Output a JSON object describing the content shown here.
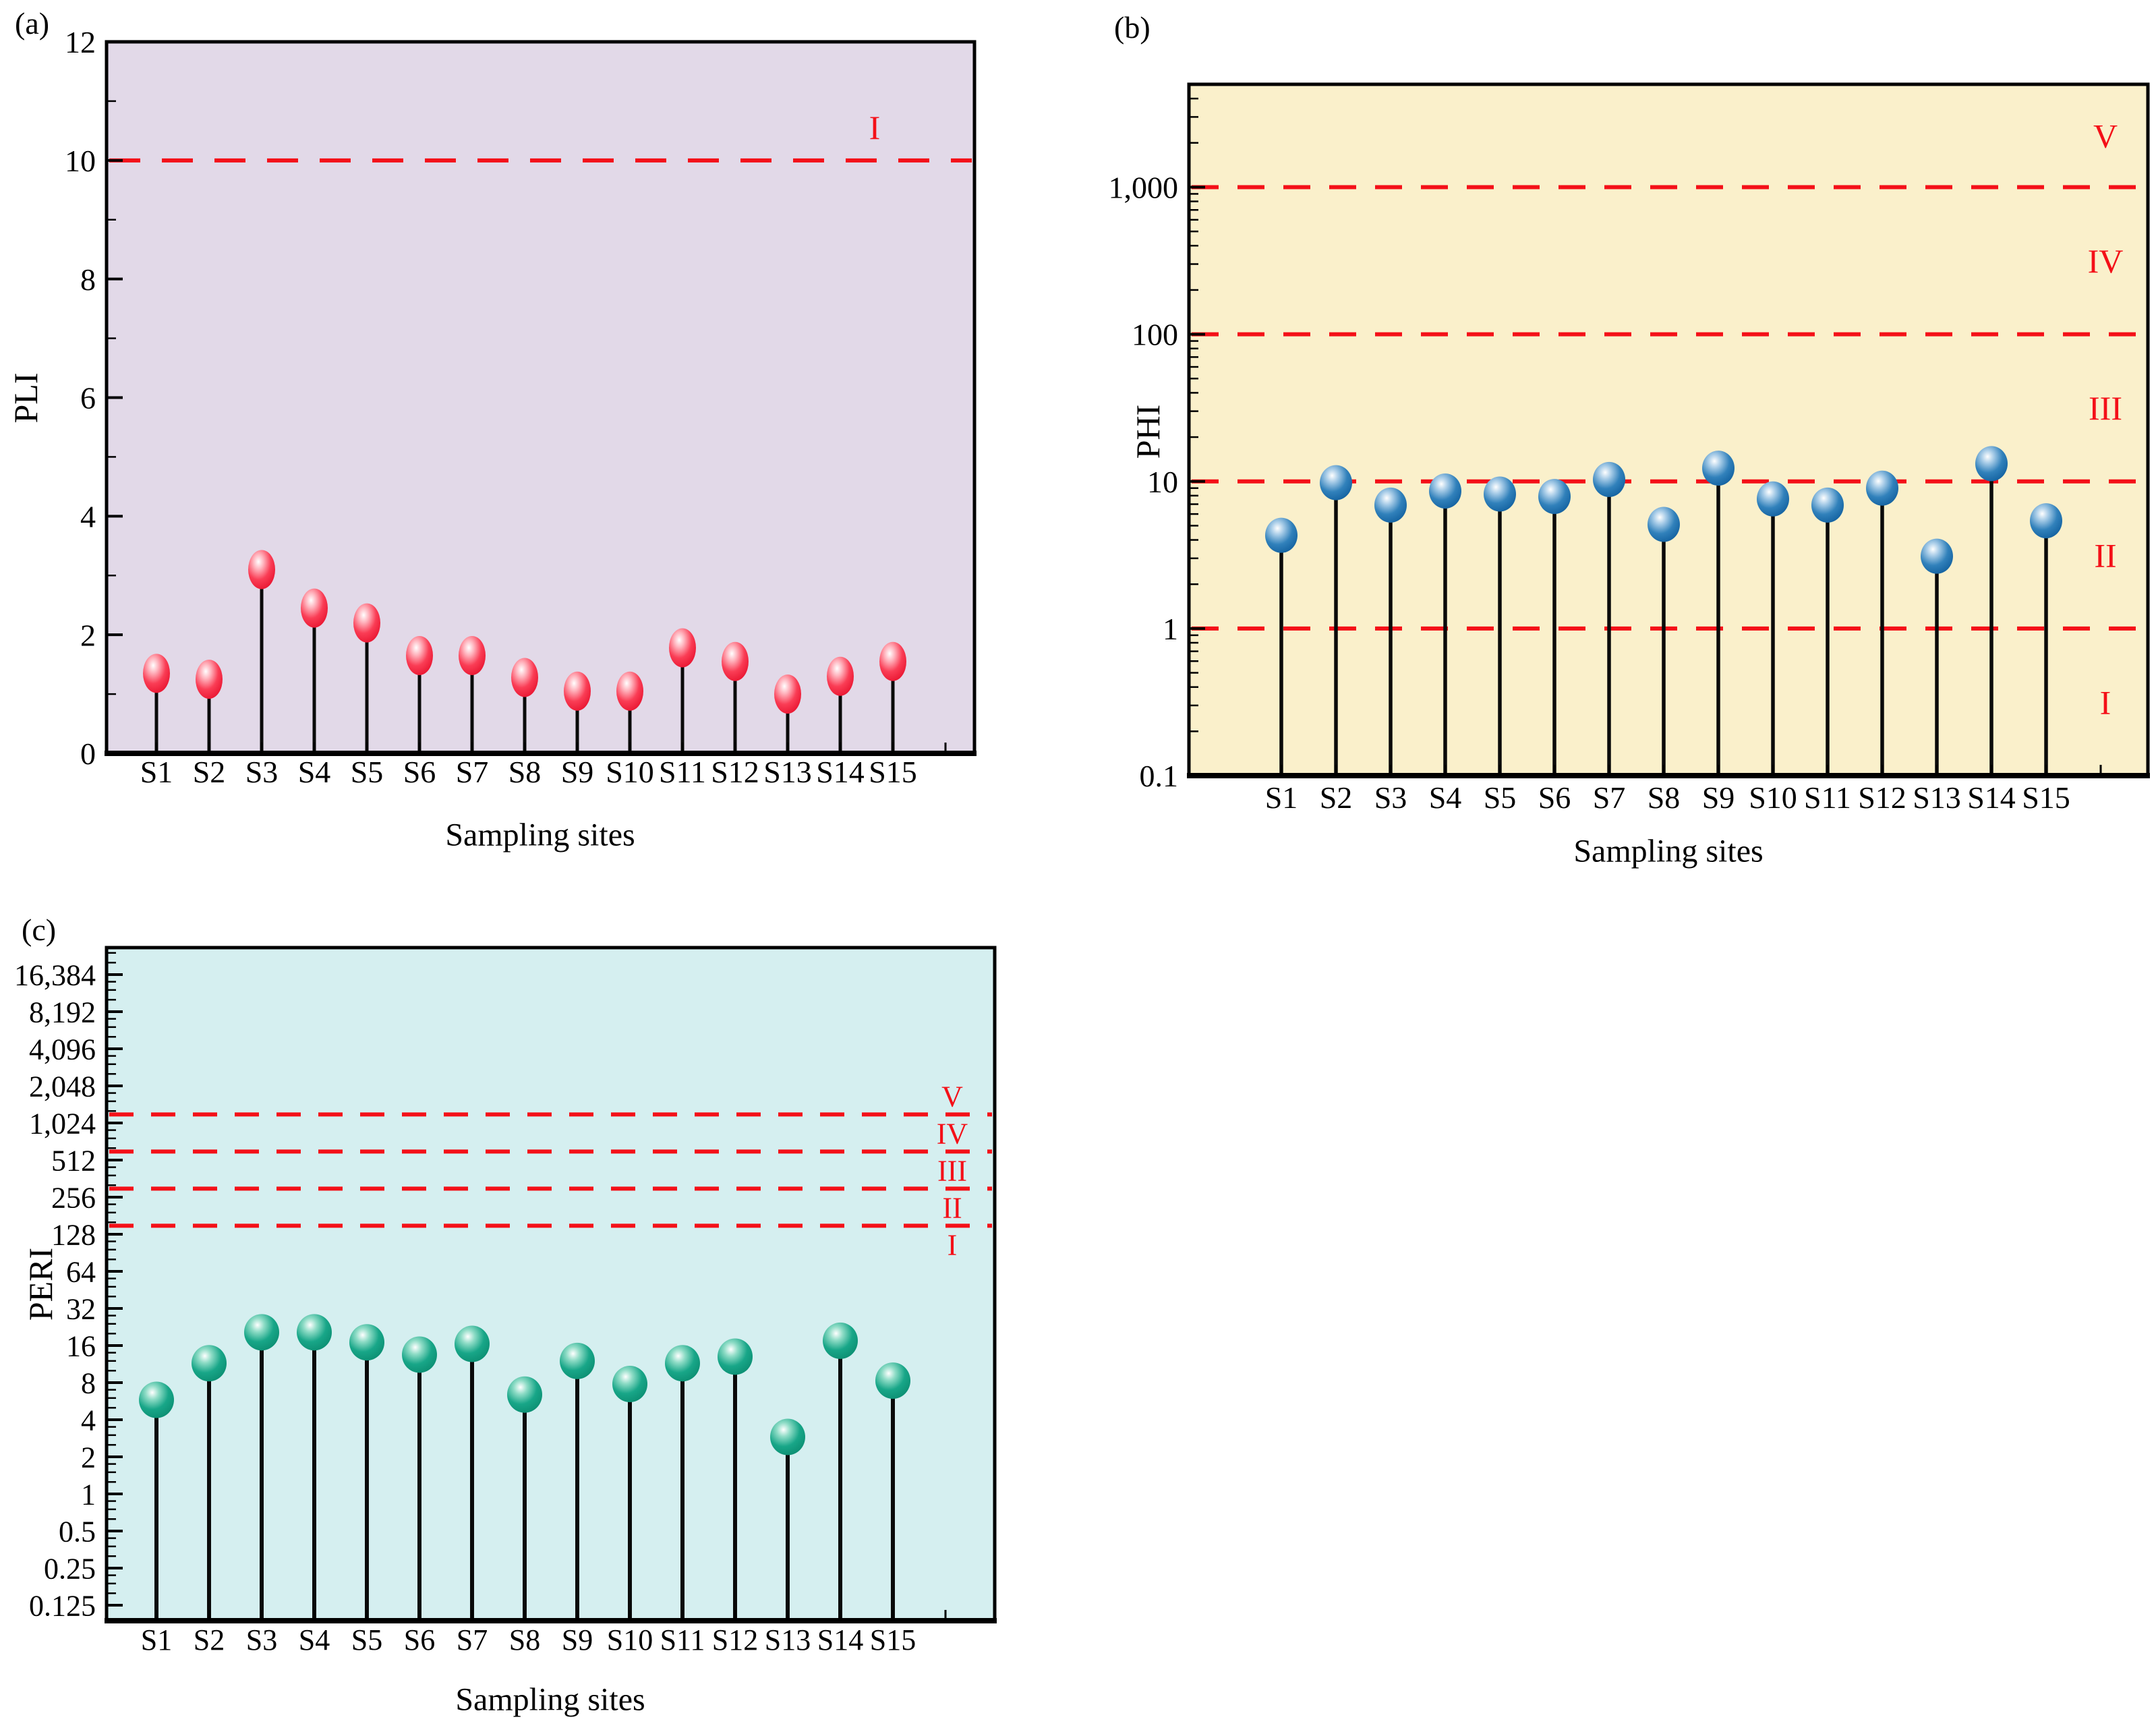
{
  "page": {
    "background": "#ffffff"
  },
  "chart_data": [
    {
      "id": "a",
      "type": "lollipop",
      "panel_label": "(a)",
      "xlabel": "Sampling sites",
      "ylabel": "PLI",
      "categories": [
        "S1",
        "S2",
        "S3",
        "S4",
        "S5",
        "S6",
        "S7",
        "S8",
        "S9",
        "S10",
        "S11",
        "S12",
        "S13",
        "S14",
        "S15"
      ],
      "values": [
        1.35,
        1.25,
        3.1,
        2.45,
        2.2,
        1.65,
        1.65,
        1.28,
        1.05,
        1.05,
        1.78,
        1.55,
        1.0,
        1.3,
        1.55
      ],
      "axis": {
        "scale": "linear",
        "min": 0,
        "max": 12,
        "major_ticks": [
          0,
          2,
          4,
          6,
          8,
          10,
          12
        ],
        "tick_labels": [
          "0",
          "2",
          "4",
          "6",
          "8",
          "10",
          "12"
        ],
        "minor_ticks": [
          1,
          3,
          5,
          7,
          9,
          11
        ],
        "grid": "off"
      },
      "threshold_lines": [
        {
          "value": 10,
          "label": "I"
        }
      ],
      "zone_labels": [],
      "colors": {
        "background": "#e2d9e8",
        "marker": "#f63b52",
        "stem": "#0a0a0a",
        "threshold": "#f41018"
      }
    },
    {
      "id": "b",
      "type": "lollipop",
      "panel_label": "(b)",
      "xlabel": "Sampling sites",
      "ylabel": "PHI",
      "categories": [
        "S1",
        "S2",
        "S3",
        "S4",
        "S5",
        "S6",
        "S7",
        "S8",
        "S9",
        "S10",
        "S11",
        "S12",
        "S13",
        "S14",
        "S15"
      ],
      "values": [
        4.3,
        9.8,
        6.9,
        8.6,
        8.2,
        7.9,
        10.3,
        5.1,
        12.3,
        7.6,
        6.9,
        9.0,
        3.1,
        13.2,
        5.4
      ],
      "axis": {
        "scale": "log10",
        "min": 0.1,
        "max": 5000,
        "major_ticks": [
          0.1,
          1,
          10,
          100,
          1000
        ],
        "tick_labels": [
          "0.1",
          "1",
          "10",
          "100",
          "1,000"
        ],
        "grid": "off"
      },
      "threshold_lines": [
        {
          "value": 1,
          "label": ""
        },
        {
          "value": 10,
          "label": ""
        },
        {
          "value": 100,
          "label": ""
        },
        {
          "value": 1000,
          "label": ""
        }
      ],
      "zone_labels": [
        {
          "label": "V",
          "between": [
            1000,
            5000
          ]
        },
        {
          "label": "IV",
          "between": [
            100,
            1000
          ]
        },
        {
          "label": "III",
          "between": [
            10,
            100
          ]
        },
        {
          "label": "II",
          "between": [
            1,
            10
          ]
        },
        {
          "label": "I",
          "between": [
            0.1,
            1
          ]
        }
      ],
      "colors": {
        "background": "#faf0cb",
        "marker": "#2272b4",
        "stem": "#0a0a0a",
        "threshold": "#f41018"
      }
    },
    {
      "id": "c",
      "type": "lollipop",
      "panel_label": "(c)",
      "xlabel": "Sampling sites",
      "ylabel": "PERI",
      "categories": [
        "S1",
        "S2",
        "S3",
        "S4",
        "S5",
        "S6",
        "S7",
        "S8",
        "S9",
        "S10",
        "S11",
        "S12",
        "S13",
        "S14",
        "S15"
      ],
      "values": [
        5.8,
        11.5,
        20.5,
        20.5,
        17.0,
        13.5,
        16.5,
        6.4,
        12.0,
        7.8,
        11.5,
        13.0,
        2.9,
        17.5,
        8.3
      ],
      "axis": {
        "scale": "log2",
        "min": 0.125,
        "max": 16384,
        "major_ticks": [
          0.125,
          0.25,
          0.5,
          1,
          2,
          4,
          8,
          16,
          32,
          64,
          128,
          256,
          512,
          1024,
          2048,
          4096,
          8192,
          16384
        ],
        "tick_labels": [
          "0.125",
          "0.25",
          "0.5",
          "1",
          "2",
          "4",
          "8",
          "16",
          "32",
          "64",
          "128",
          "256",
          "512",
          "1,024",
          "2,048",
          "4,096",
          "8,192",
          "16,384"
        ],
        "grid": "off"
      },
      "threshold_lines": [
        {
          "value": 150,
          "label": ""
        },
        {
          "value": 300,
          "label": ""
        },
        {
          "value": 600,
          "label": ""
        },
        {
          "value": 1200,
          "label": ""
        }
      ],
      "zone_labels": [
        {
          "label": "V",
          "between": [
            1200,
            2400
          ]
        },
        {
          "label": "IV",
          "between": [
            600,
            1200
          ]
        },
        {
          "label": "III",
          "between": [
            300,
            600
          ]
        },
        {
          "label": "II",
          "between": [
            150,
            300
          ]
        },
        {
          "label": "I",
          "between": [
            75,
            150
          ]
        }
      ],
      "colors": {
        "background": "#d5eff0",
        "marker": "#17a586",
        "stem": "#0a0a0a",
        "threshold": "#f41018"
      }
    }
  ]
}
